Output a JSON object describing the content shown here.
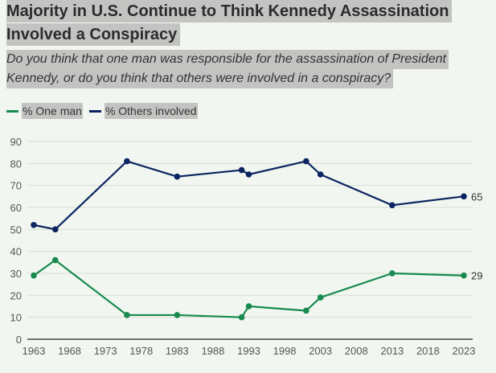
{
  "title_line1": "Majority in U.S. Continue to Think Kennedy Assassination",
  "title_line2": "Involved a Conspiracy",
  "subtitle_line1": "Do you think that one man was responsible for the assassination of President",
  "subtitle_line2": "Kennedy, or do you think that others were involved in a conspiracy?",
  "chart_data": {
    "type": "line",
    "title": "Majority in U.S. Continue to Think Kennedy Assassination Involved a Conspiracy",
    "subtitle": "Do you think that one man was responsible for the assassination of President Kennedy, or do you think that others were involved in a conspiracy?",
    "xlabel": "",
    "ylabel": "",
    "x": [
      1963,
      1966,
      1976,
      1983,
      1992,
      1993,
      2001,
      2003,
      2013,
      2023
    ],
    "xlim": [
      1963,
      2023
    ],
    "ylim": [
      0,
      90
    ],
    "yticks": [
      0,
      10,
      20,
      30,
      40,
      50,
      60,
      70,
      80,
      90
    ],
    "xticks": [
      1963,
      1968,
      1973,
      1978,
      1983,
      1988,
      1993,
      1998,
      2003,
      2008,
      2013,
      2018,
      2023
    ],
    "grid": true,
    "legend_position": "top-left",
    "series": [
      {
        "name": "% One man",
        "color": "#188a4f",
        "values": [
          29,
          36,
          11,
          11,
          10,
          15,
          13,
          19,
          30,
          29
        ],
        "end_label": "29"
      },
      {
        "name": "% Others involved",
        "color": "#0c2461",
        "values": [
          52,
          50,
          81,
          74,
          77,
          75,
          81,
          75,
          61,
          65
        ],
        "end_label": "65"
      }
    ]
  }
}
